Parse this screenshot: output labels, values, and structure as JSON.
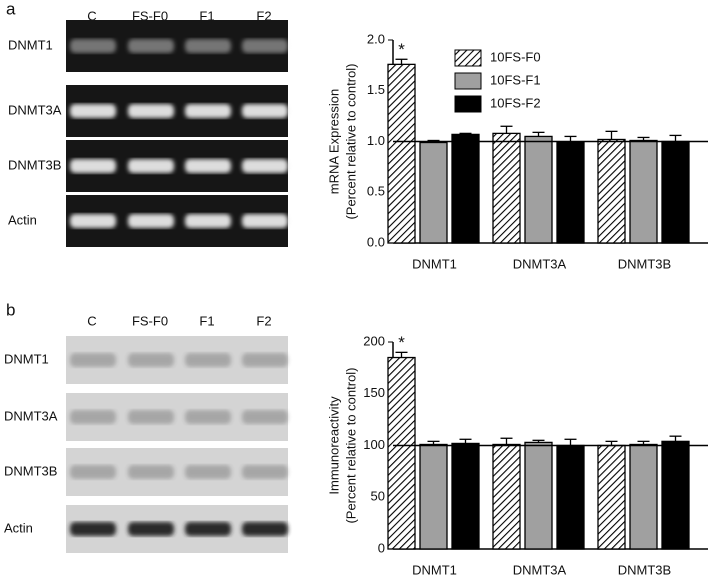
{
  "gels": [
    {
      "panel": "a",
      "lanes": [
        "C",
        "FS-F0",
        "F1",
        "F2"
      ],
      "rows": [
        "DNMT1",
        "DNMT3A",
        "DNMT3B",
        "Actin"
      ]
    },
    {
      "panel": "b",
      "lanes": [
        "C",
        "FS-F0",
        "F1",
        "F2"
      ],
      "rows": [
        "DNMT1",
        "DNMT3A",
        "DNMT3B",
        "Actin"
      ]
    }
  ],
  "chart_data": [
    {
      "type": "bar",
      "ylabel": [
        "mRNA Expression",
        "(Percent relative to control)"
      ],
      "categories": [
        "DNMT1",
        "DNMT3A",
        "DNMT3B"
      ],
      "series": [
        {
          "name": "10FS-F0",
          "color": "#000000",
          "hatch": true,
          "values": [
            1.76,
            1.08,
            1.02
          ],
          "errors": [
            0.05,
            0.07,
            0.08
          ]
        },
        {
          "name": "10FS-F1",
          "color": "#a0a0a0",
          "values": [
            0.99,
            1.05,
            1.01
          ],
          "errors": [
            0.02,
            0.04,
            0.03
          ]
        },
        {
          "name": "10FS-F2",
          "color": "#000000",
          "values": [
            1.07,
            0.99,
            1.0
          ],
          "errors": [
            0.01,
            0.06,
            0.06
          ]
        }
      ],
      "annotation": "*",
      "reference_line": 1.0,
      "legend": "top-right",
      "ylim": [
        0,
        2.0
      ],
      "yticks": [
        {
          "value": 0,
          "label": "0.0"
        },
        {
          "value": 0.5,
          "label": "0.5"
        },
        {
          "value": 1.0,
          "label": "1.0"
        },
        {
          "value": 1.5,
          "label": "1.5"
        },
        {
          "value": 2.0,
          "label": "2.0"
        }
      ]
    },
    {
      "type": "bar",
      "ylabel": [
        "Immunoreactivity",
        "(Percent relative to control)"
      ],
      "categories": [
        "DNMT1",
        "DNMT3A",
        "DNMT3B"
      ],
      "series": [
        {
          "color": "#000000",
          "hatch": true,
          "values": [
            185,
            101,
            100
          ],
          "errors": [
            5,
            6,
            4
          ]
        },
        {
          "color": "#a0a0a0",
          "values": [
            101,
            103,
            101
          ],
          "errors": [
            3,
            2,
            3
          ]
        },
        {
          "color": "#000000",
          "values": [
            102,
            100,
            104
          ],
          "errors": [
            4,
            6,
            5
          ]
        }
      ],
      "annotation": "*",
      "reference_line": 100,
      "ylim": [
        0,
        200
      ],
      "yticks": [
        0,
        50,
        100,
        150,
        200
      ]
    }
  ]
}
